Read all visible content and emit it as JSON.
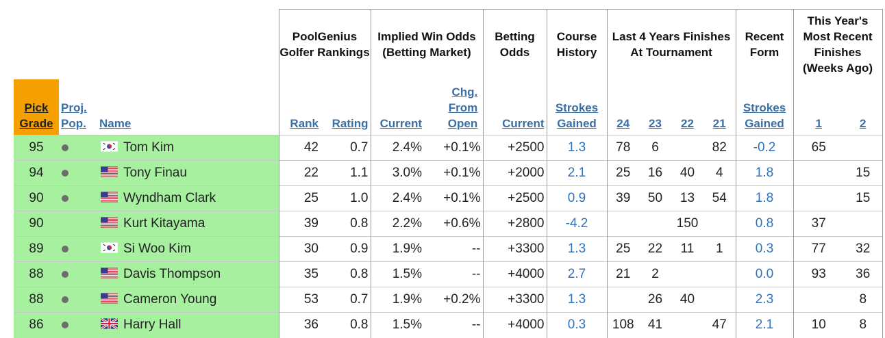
{
  "headers": {
    "groups": {
      "rankings": "PoolGenius Golfer Rankings",
      "implied": "Implied Win Odds (Betting Market)",
      "betting": "Betting Odds",
      "course": "Course History",
      "last4": "Last 4 Years Finishes At Tournament",
      "recent": "Recent Form",
      "thisyear": "This Year's Most Recent Finishes (Weeks Ago)"
    },
    "sub": {
      "pick_grade": "Pick Grade",
      "proj_pop": "Proj. Pop.",
      "name": "Name",
      "rank": "Rank",
      "rating": "Rating",
      "current": "Current",
      "chg_from_open": "Chg. From Open",
      "odds_current": "Current",
      "strokes_gained": "Strokes Gained",
      "y24": "24",
      "y23": "23",
      "y22": "22",
      "y21": "21",
      "form_strokes_gained": "Strokes Gained",
      "w1": "1",
      "w2": "2"
    }
  },
  "colors": {
    "pick_grade_header": "#f5a000",
    "row_green": "#a6f0a0",
    "link_blue": "#3a6fa6",
    "value_blue": "#2f73c0"
  },
  "rows": [
    {
      "grade": "95",
      "proj": true,
      "flag": "kr-flag-icon",
      "name": "Tom Kim",
      "rank": "42",
      "rating": "0.7",
      "current": "2.4%",
      "chg": "+0.1%",
      "odds": "+2500",
      "course_sg": "1.3",
      "y24": "78",
      "y23": "6",
      "y22": "",
      "y21": "82",
      "form_sg": "-0.2",
      "w1": "65",
      "w2": ""
    },
    {
      "grade": "94",
      "proj": true,
      "flag": "us-flag-icon",
      "name": "Tony Finau",
      "rank": "22",
      "rating": "1.1",
      "current": "3.0%",
      "chg": "+0.1%",
      "odds": "+2000",
      "course_sg": "2.1",
      "y24": "25",
      "y23": "16",
      "y22": "40",
      "y21": "4",
      "form_sg": "1.8",
      "w1": "",
      "w2": "15"
    },
    {
      "grade": "90",
      "proj": true,
      "flag": "us-flag-icon",
      "name": "Wyndham Clark",
      "rank": "25",
      "rating": "1.0",
      "current": "2.4%",
      "chg": "+0.1%",
      "odds": "+2500",
      "course_sg": "0.9",
      "y24": "39",
      "y23": "50",
      "y22": "13",
      "y21": "54",
      "form_sg": "1.8",
      "w1": "",
      "w2": "15"
    },
    {
      "grade": "90",
      "proj": false,
      "flag": "us-flag-icon",
      "name": "Kurt Kitayama",
      "rank": "39",
      "rating": "0.8",
      "current": "2.2%",
      "chg": "+0.6%",
      "odds": "+2800",
      "course_sg": "-4.2",
      "y24": "",
      "y23": "",
      "y22": "150",
      "y21": "",
      "form_sg": "0.8",
      "w1": "37",
      "w2": ""
    },
    {
      "grade": "89",
      "proj": true,
      "flag": "kr-flag-icon",
      "name": "Si Woo Kim",
      "rank": "30",
      "rating": "0.9",
      "current": "1.9%",
      "chg": "--",
      "odds": "+3300",
      "course_sg": "1.3",
      "y24": "25",
      "y23": "22",
      "y22": "11",
      "y21": "1",
      "form_sg": "0.3",
      "w1": "77",
      "w2": "32"
    },
    {
      "grade": "88",
      "proj": true,
      "flag": "us-flag-icon",
      "name": "Davis Thompson",
      "rank": "35",
      "rating": "0.8",
      "current": "1.5%",
      "chg": "--",
      "odds": "+4000",
      "course_sg": "2.7",
      "y24": "21",
      "y23": "2",
      "y22": "",
      "y21": "",
      "form_sg": "0.0",
      "w1": "93",
      "w2": "36"
    },
    {
      "grade": "88",
      "proj": true,
      "flag": "us-flag-icon",
      "name": "Cameron Young",
      "rank": "53",
      "rating": "0.7",
      "current": "1.9%",
      "chg": "+0.2%",
      "odds": "+3300",
      "course_sg": "1.3",
      "y24": "",
      "y23": "26",
      "y22": "40",
      "y21": "",
      "form_sg": "2.3",
      "w1": "",
      "w2": "8"
    },
    {
      "grade": "86",
      "proj": true,
      "flag": "gb-flag-icon",
      "name": "Harry Hall",
      "rank": "36",
      "rating": "0.8",
      "current": "1.5%",
      "chg": "--",
      "odds": "+4000",
      "course_sg": "0.3",
      "y24": "108",
      "y23": "41",
      "y22": "",
      "y21": "47",
      "form_sg": "2.1",
      "w1": "10",
      "w2": "8"
    }
  ]
}
